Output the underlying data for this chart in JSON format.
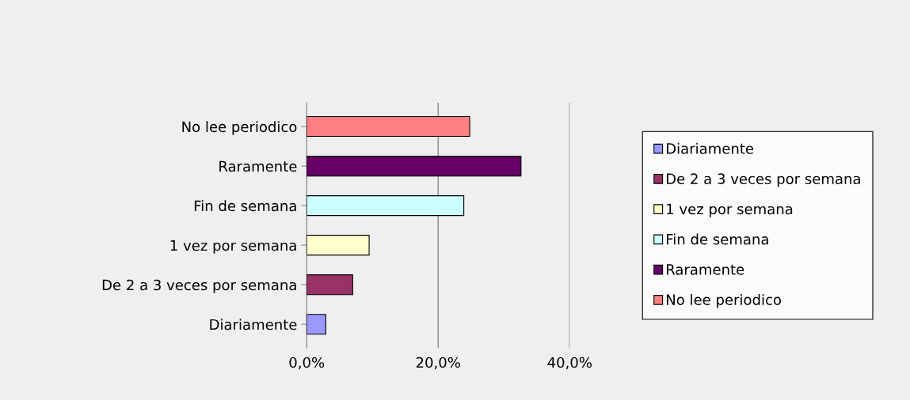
{
  "chart_data": {
    "type": "bar",
    "orientation": "horizontal",
    "categories": [
      "No lee periodico",
      "Raramente",
      "Fin de semana",
      "1 vez por semana",
      "De 2 a 3 veces por semana",
      "Diariamente"
    ],
    "series": [
      {
        "name": "Diariamente",
        "color": "#9999ff",
        "values": [
          null,
          null,
          null,
          null,
          null,
          2.9
        ]
      },
      {
        "name": "De 2 a 3 veces por semana",
        "color": "#993366",
        "values": [
          null,
          null,
          null,
          null,
          7.0,
          null
        ]
      },
      {
        "name": "1 vez por semana",
        "color": "#ffffcc",
        "values": [
          null,
          null,
          null,
          9.5,
          null,
          null
        ]
      },
      {
        "name": "Fin de semana",
        "color": "#ccffff",
        "values": [
          null,
          null,
          23.9,
          null,
          null,
          null
        ]
      },
      {
        "name": "Raramente",
        "color": "#660066",
        "values": [
          null,
          32.6,
          null,
          null,
          null,
          null
        ]
      },
      {
        "name": "No lee periodico",
        "color": "#ff8080",
        "values": [
          24.8,
          null,
          null,
          null,
          null,
          null
        ]
      }
    ],
    "xlim": [
      0,
      40
    ],
    "xticks": [
      {
        "value": 0,
        "label": "0,0%"
      },
      {
        "value": 20,
        "label": "20,0%"
      },
      {
        "value": 40,
        "label": "40,0%"
      }
    ],
    "grid": "x",
    "legend": "right"
  }
}
